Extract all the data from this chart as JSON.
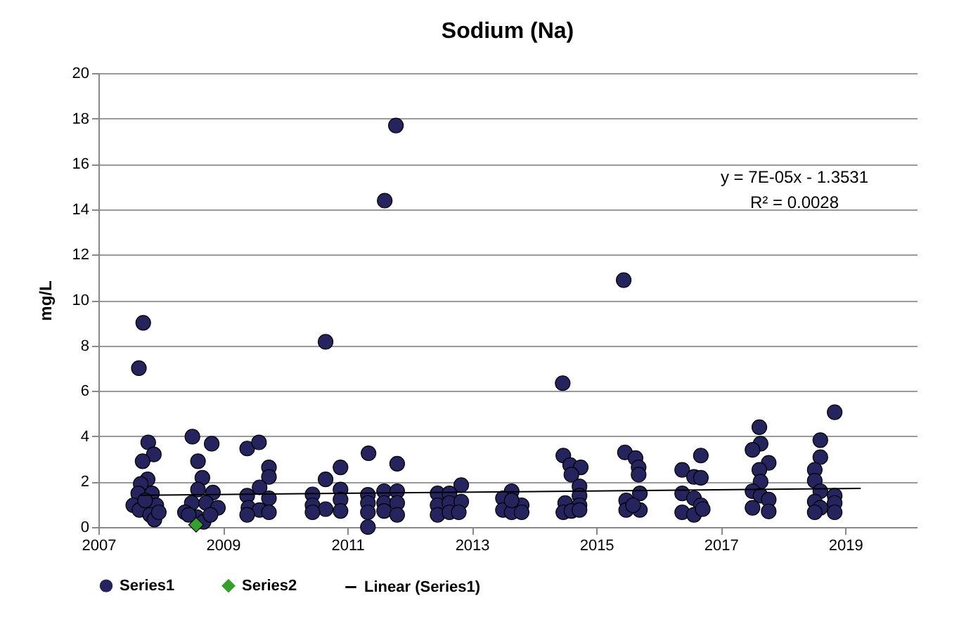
{
  "chart_data": {
    "type": "scatter",
    "title": "Sodium (Na)",
    "ylabel": "mg/L",
    "xlim": [
      2007,
      2020.15
    ],
    "xticks": [
      2007,
      2009,
      2011,
      2013,
      2015,
      2017,
      2019
    ],
    "ylim": [
      0,
      20
    ],
    "yticks": [
      0,
      2,
      4,
      6,
      8,
      10,
      12,
      14,
      16,
      18,
      20
    ],
    "grid": "y",
    "legend": "bottom",
    "annotations": [
      "y = 7E-05x - 1.3531",
      "R² = 0.0028"
    ],
    "series": [
      {
        "name": "Series1",
        "color": "#25245f",
        "marker": "circle",
        "x": [
          2007.65,
          2007.72,
          2007.8,
          2007.89,
          2007.71,
          2007.79,
          2007.68,
          2007.64,
          2007.86,
          2007.56,
          2007.93,
          2007.66,
          2007.83,
          2007.9,
          2007.75,
          2007.97,
          2008.51,
          2008.82,
          2008.6,
          2008.67,
          2008.6,
          2008.84,
          2008.5,
          2008.73,
          2008.92,
          2008.39,
          2008.58,
          2008.69,
          2008.45,
          2008.8,
          2009.39,
          2009.58,
          2009.74,
          2009.74,
          2009.59,
          2009.39,
          2009.74,
          2009.41,
          2009.59,
          2009.74,
          2009.39,
          2010.65,
          2010.89,
          2010.65,
          2010.44,
          2010.89,
          2010.44,
          2010.65,
          2010.89,
          2010.89,
          2010.44,
          2011.6,
          2011.78,
          2011.34,
          2011.8,
          2011.33,
          2011.59,
          2011.8,
          2011.59,
          2011.33,
          2011.8,
          2011.33,
          2011.59,
          2011.8,
          2011.33,
          2012.83,
          2012.45,
          2012.64,
          2012.45,
          2012.64,
          2012.83,
          2012.45,
          2012.64,
          2012.79,
          2013.64,
          2013.5,
          2013.8,
          2013.5,
          2013.64,
          2013.8,
          2013.64,
          2014.46,
          2014.47,
          2014.58,
          2014.75,
          2014.6,
          2014.73,
          2014.73,
          2014.5,
          2014.73,
          2014.47,
          2014.6,
          2014.73,
          2015.44,
          2015.46,
          2015.63,
          2015.68,
          2015.68,
          2015.7,
          2015.48,
          2015.48,
          2015.7,
          2015.59,
          2016.68,
          2016.38,
          2016.57,
          2016.68,
          2016.38,
          2016.57,
          2016.68,
          2016.38,
          2016.57,
          2016.71,
          2017.62,
          2017.64,
          2017.51,
          2017.77,
          2017.62,
          2017.64,
          2017.51,
          2017.64,
          2017.51,
          2017.77,
          2017.77,
          2018.83,
          2018.6,
          2018.6,
          2018.51,
          2018.51,
          2018.6,
          2018.83,
          2018.51,
          2018.83,
          2018.6,
          2018.51,
          2018.83
        ],
        "values": [
          7.0,
          9.0,
          3.73,
          3.2,
          2.9,
          2.1,
          1.9,
          1.48,
          1.48,
          0.96,
          0.96,
          0.75,
          0.54,
          0.33,
          1.17,
          0.65,
          3.98,
          3.67,
          2.9,
          2.17,
          1.65,
          1.52,
          1.06,
          1.06,
          0.85,
          0.65,
          0.44,
          0.23,
          0.54,
          0.54,
          3.46,
          3.73,
          2.63,
          2.21,
          1.75,
          1.38,
          1.27,
          0.85,
          0.75,
          0.65,
          0.54,
          8.16,
          2.63,
          2.1,
          1.44,
          1.65,
          0.96,
          0.79,
          1.21,
          0.71,
          0.65,
          14.38,
          17.69,
          3.25,
          2.79,
          1.42,
          1.58,
          1.58,
          1.06,
          1.06,
          1.06,
          0.65,
          0.71,
          0.54,
          0.0,
          1.85,
          1.48,
          1.48,
          0.96,
          1.06,
          1.12,
          0.54,
          0.65,
          0.65,
          1.58,
          1.27,
          0.96,
          0.75,
          0.65,
          0.65,
          1.17,
          6.34,
          3.15,
          2.73,
          2.63,
          2.31,
          1.79,
          1.38,
          1.06,
          0.96,
          0.65,
          0.71,
          0.75,
          10.88,
          3.29,
          3.04,
          2.63,
          2.31,
          1.48,
          1.17,
          0.75,
          0.75,
          0.96,
          3.15,
          2.52,
          2.21,
          2.17,
          1.48,
          1.27,
          0.96,
          0.65,
          0.54,
          0.79,
          4.4,
          3.67,
          3.4,
          2.83,
          2.52,
          2.0,
          1.58,
          1.38,
          0.85,
          1.21,
          0.69,
          5.06,
          3.83,
          3.08,
          2.52,
          2.04,
          1.58,
          1.38,
          1.12,
          1.06,
          0.85,
          0.65,
          0.65
        ]
      },
      {
        "name": "Series2",
        "color": "#33a02c",
        "marker": "diamond",
        "x": [
          2008.57
        ],
        "values": [
          0.1
        ]
      },
      {
        "name": "Linear (Series1)",
        "type": "line",
        "color": "#000000",
        "line_style": "solid",
        "x": [
          2007.67,
          2019.25
        ],
        "values": [
          1.4,
          1.7
        ]
      }
    ]
  }
}
